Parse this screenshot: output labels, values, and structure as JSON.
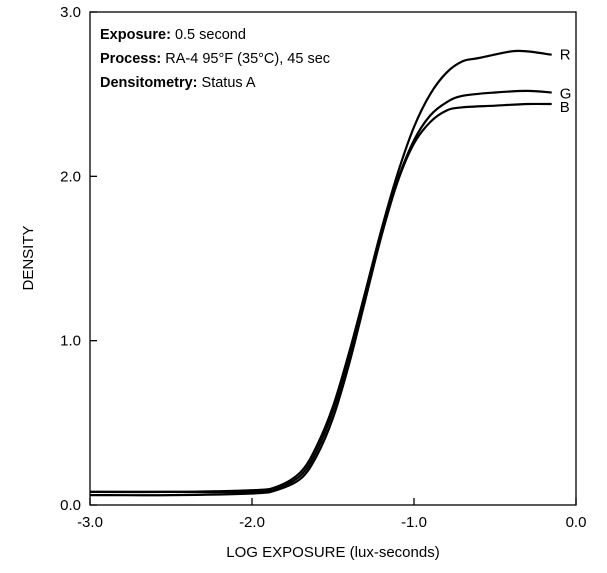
{
  "chart_data": {
    "type": "line",
    "xlabel": "LOG EXPOSURE (lux-seconds)",
    "ylabel": "DENSITY",
    "xlim": [
      -3.0,
      0.0
    ],
    "ylim": [
      0.0,
      3.0
    ],
    "x_ticks": [
      "-3.0",
      "-2.0",
      "-1.0",
      "0.0"
    ],
    "y_ticks": [
      "0.0",
      "1.0",
      "2.0",
      "3.0"
    ],
    "grid": false,
    "legend": "labels at right end of curves",
    "annotations": [
      {
        "key": "Exposure:",
        "value": " 0.5 second"
      },
      {
        "key": "Process:",
        "value": " RA-4 95°F (35°C), 45 sec"
      },
      {
        "key": "Densitometry:",
        "value": " Status A"
      }
    ],
    "series": [
      {
        "name": "R",
        "color": "#000000",
        "points": [
          [
            -3.0,
            0.08
          ],
          [
            -2.5,
            0.08
          ],
          [
            -2.0,
            0.09
          ],
          [
            -1.85,
            0.11
          ],
          [
            -1.7,
            0.2
          ],
          [
            -1.6,
            0.36
          ],
          [
            -1.5,
            0.6
          ],
          [
            -1.4,
            0.93
          ],
          [
            -1.3,
            1.3
          ],
          [
            -1.2,
            1.68
          ],
          [
            -1.1,
            2.02
          ],
          [
            -1.0,
            2.3
          ],
          [
            -0.9,
            2.5
          ],
          [
            -0.8,
            2.63
          ],
          [
            -0.7,
            2.7
          ],
          [
            -0.6,
            2.72
          ],
          [
            -0.4,
            2.76
          ],
          [
            -0.3,
            2.76
          ],
          [
            -0.15,
            2.74
          ]
        ]
      },
      {
        "name": "G",
        "color": "#000000",
        "points": [
          [
            -3.0,
            0.08
          ],
          [
            -2.5,
            0.08
          ],
          [
            -2.0,
            0.08
          ],
          [
            -1.85,
            0.1
          ],
          [
            -1.7,
            0.18
          ],
          [
            -1.6,
            0.33
          ],
          [
            -1.5,
            0.57
          ],
          [
            -1.4,
            0.9
          ],
          [
            -1.3,
            1.28
          ],
          [
            -1.2,
            1.66
          ],
          [
            -1.1,
            1.98
          ],
          [
            -1.0,
            2.22
          ],
          [
            -0.9,
            2.37
          ],
          [
            -0.8,
            2.45
          ],
          [
            -0.7,
            2.49
          ],
          [
            -0.5,
            2.51
          ],
          [
            -0.3,
            2.52
          ],
          [
            -0.15,
            2.51
          ]
        ]
      },
      {
        "name": "B",
        "color": "#000000",
        "points": [
          [
            -3.0,
            0.06
          ],
          [
            -2.5,
            0.06
          ],
          [
            -2.0,
            0.07
          ],
          [
            -1.85,
            0.09
          ],
          [
            -1.7,
            0.16
          ],
          [
            -1.6,
            0.3
          ],
          [
            -1.5,
            0.53
          ],
          [
            -1.4,
            0.86
          ],
          [
            -1.3,
            1.25
          ],
          [
            -1.2,
            1.64
          ],
          [
            -1.1,
            1.97
          ],
          [
            -1.0,
            2.2
          ],
          [
            -0.9,
            2.33
          ],
          [
            -0.8,
            2.4
          ],
          [
            -0.7,
            2.42
          ],
          [
            -0.5,
            2.43
          ],
          [
            -0.3,
            2.44
          ],
          [
            -0.15,
            2.44
          ]
        ]
      }
    ]
  }
}
